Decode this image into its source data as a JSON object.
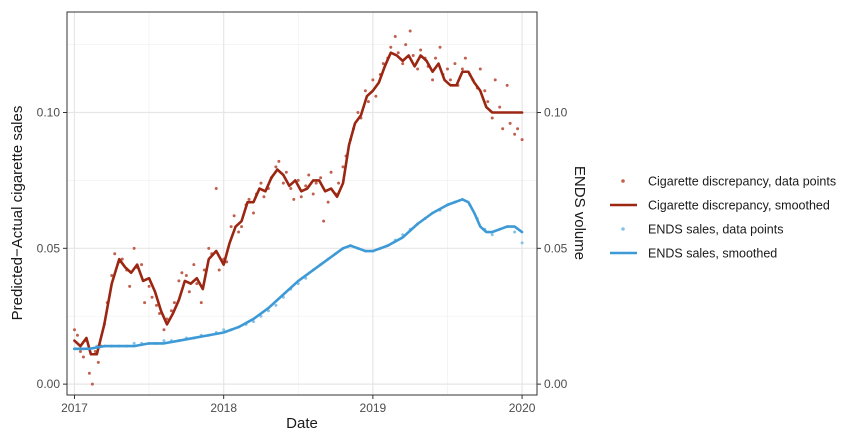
{
  "chart_data": {
    "type": "line",
    "xlabel": "Date",
    "ylabel_left": "Predicted−Actual cigarette sales",
    "ylabel_right": "ENDS volume",
    "x_ticks": [
      "2017",
      "2018",
      "2019",
      "2020"
    ],
    "xlim": [
      2016.95,
      2020.1
    ],
    "y_ticks_left": [
      "0.00",
      "0.05",
      "0.10"
    ],
    "y_ticks_right": [
      "0.00",
      "0.05",
      "0.10"
    ],
    "ylim": [
      -0.004,
      0.137
    ],
    "grid": true,
    "legend_position": "right",
    "colors": {
      "cigarette": "#9b2612",
      "cigarette_points": "#c0604e",
      "ends": "#3d9ad6",
      "ends_points": "#86c3e8"
    },
    "series": [
      {
        "name": "Cigarette discrepancy, smoothed",
        "kind": "line",
        "color": "#9b2612",
        "x": [
          2017.0,
          2017.04,
          2017.08,
          2017.11,
          2017.15,
          2017.2,
          2017.25,
          2017.3,
          2017.34,
          2017.38,
          2017.42,
          2017.46,
          2017.5,
          2017.54,
          2017.58,
          2017.62,
          2017.66,
          2017.7,
          2017.74,
          2017.78,
          2017.82,
          2017.86,
          2017.9,
          2017.95,
          2018.0,
          2018.04,
          2018.08,
          2018.12,
          2018.16,
          2018.2,
          2018.24,
          2018.28,
          2018.32,
          2018.36,
          2018.4,
          2018.44,
          2018.48,
          2018.52,
          2018.56,
          2018.6,
          2018.64,
          2018.68,
          2018.72,
          2018.76,
          2018.8,
          2018.84,
          2018.88,
          2018.92,
          2018.96,
          2019.0,
          2019.04,
          2019.08,
          2019.12,
          2019.16,
          2019.2,
          2019.24,
          2019.28,
          2019.32,
          2019.36,
          2019.4,
          2019.44,
          2019.48,
          2019.52,
          2019.56,
          2019.6,
          2019.64,
          2019.68,
          2019.72,
          2019.76,
          2019.8,
          2019.84,
          2019.88,
          2019.92,
          2019.96,
          2020.0
        ],
        "values": [
          0.016,
          0.014,
          0.017,
          0.011,
          0.011,
          0.022,
          0.037,
          0.046,
          0.043,
          0.041,
          0.044,
          0.038,
          0.039,
          0.034,
          0.027,
          0.022,
          0.026,
          0.031,
          0.038,
          0.037,
          0.039,
          0.035,
          0.046,
          0.049,
          0.044,
          0.052,
          0.058,
          0.06,
          0.067,
          0.067,
          0.072,
          0.071,
          0.076,
          0.079,
          0.077,
          0.073,
          0.075,
          0.071,
          0.072,
          0.075,
          0.075,
          0.071,
          0.072,
          0.069,
          0.074,
          0.088,
          0.096,
          0.099,
          0.106,
          0.108,
          0.111,
          0.117,
          0.122,
          0.121,
          0.119,
          0.121,
          0.117,
          0.121,
          0.119,
          0.115,
          0.118,
          0.112,
          0.11,
          0.11,
          0.115,
          0.115,
          0.111,
          0.108,
          0.102,
          0.1,
          0.1,
          0.1,
          0.1,
          0.1,
          0.1
        ]
      },
      {
        "name": "Cigarette discrepancy, data points",
        "kind": "points",
        "color": "#c0604e",
        "x": [
          2017.0,
          2017.02,
          2017.04,
          2017.06,
          2017.08,
          2017.1,
          2017.12,
          2017.14,
          2017.16,
          2017.18,
          2017.2,
          2017.22,
          2017.25,
          2017.27,
          2017.3,
          2017.32,
          2017.35,
          2017.37,
          2017.4,
          2017.42,
          2017.45,
          2017.47,
          2017.5,
          2017.52,
          2017.55,
          2017.57,
          2017.6,
          2017.62,
          2017.65,
          2017.67,
          2017.7,
          2017.72,
          2017.75,
          2017.77,
          2017.8,
          2017.82,
          2017.85,
          2017.87,
          2017.9,
          2017.92,
          2017.95,
          2017.97,
          2018.0,
          2018.02,
          2018.05,
          2018.07,
          2018.1,
          2018.12,
          2018.15,
          2018.17,
          2018.2,
          2018.22,
          2018.25,
          2018.27,
          2018.3,
          2018.32,
          2018.35,
          2018.37,
          2018.4,
          2018.42,
          2018.45,
          2018.47,
          2018.5,
          2018.52,
          2018.55,
          2018.57,
          2018.6,
          2018.62,
          2018.65,
          2018.67,
          2018.7,
          2018.72,
          2018.75,
          2018.77,
          2018.8,
          2018.82,
          2018.85,
          2018.87,
          2018.9,
          2018.92,
          2018.95,
          2018.97,
          2019.0,
          2019.02,
          2019.05,
          2019.07,
          2019.1,
          2019.12,
          2019.15,
          2019.17,
          2019.2,
          2019.22,
          2019.25,
          2019.27,
          2019.3,
          2019.32,
          2019.35,
          2019.37,
          2019.4,
          2019.42,
          2019.45,
          2019.47,
          2019.5,
          2019.52,
          2019.55,
          2019.57,
          2019.6,
          2019.62,
          2019.65,
          2019.67,
          2019.7,
          2019.72,
          2019.75,
          2019.77,
          2019.8,
          2019.82,
          2019.85,
          2019.87,
          2019.9,
          2019.92,
          2019.95,
          2019.97,
          2020.0
        ],
        "values": [
          0.02,
          0.018,
          0.012,
          0.01,
          0.016,
          0.004,
          0.0,
          0.012,
          0.008,
          0.014,
          0.022,
          0.03,
          0.04,
          0.048,
          0.045,
          0.046,
          0.042,
          0.036,
          0.05,
          0.043,
          0.044,
          0.03,
          0.036,
          0.032,
          0.029,
          0.026,
          0.02,
          0.024,
          0.027,
          0.03,
          0.038,
          0.041,
          0.04,
          0.034,
          0.044,
          0.037,
          0.03,
          0.042,
          0.05,
          0.048,
          0.072,
          0.042,
          0.046,
          0.045,
          0.058,
          0.062,
          0.056,
          0.058,
          0.066,
          0.068,
          0.063,
          0.07,
          0.074,
          0.069,
          0.072,
          0.076,
          0.08,
          0.082,
          0.074,
          0.078,
          0.072,
          0.068,
          0.075,
          0.069,
          0.073,
          0.077,
          0.07,
          0.074,
          0.076,
          0.06,
          0.067,
          0.078,
          0.07,
          0.074,
          0.08,
          0.084,
          0.09,
          0.094,
          0.1,
          0.098,
          0.108,
          0.104,
          0.112,
          0.106,
          0.114,
          0.118,
          0.12,
          0.124,
          0.128,
          0.122,
          0.118,
          0.125,
          0.13,
          0.121,
          0.116,
          0.123,
          0.12,
          0.117,
          0.112,
          0.12,
          0.124,
          0.114,
          0.116,
          0.112,
          0.118,
          0.11,
          0.116,
          0.12,
          0.114,
          0.112,
          0.109,
          0.116,
          0.108,
          0.104,
          0.098,
          0.112,
          0.102,
          0.094,
          0.11,
          0.096,
          0.092,
          0.094,
          0.09
        ]
      },
      {
        "name": "ENDS sales, smoothed",
        "kind": "line",
        "color": "#3d9ad6",
        "x": [
          2017.0,
          2017.1,
          2017.2,
          2017.3,
          2017.4,
          2017.5,
          2017.6,
          2017.7,
          2017.8,
          2017.9,
          2018.0,
          2018.1,
          2018.2,
          2018.3,
          2018.4,
          2018.5,
          2018.6,
          2018.7,
          2018.8,
          2018.85,
          2018.9,
          2018.95,
          2019.0,
          2019.1,
          2019.2,
          2019.3,
          2019.4,
          2019.5,
          2019.55,
          2019.6,
          2019.64,
          2019.68,
          2019.72,
          2019.76,
          2019.8,
          2019.85,
          2019.9,
          2019.95,
          2020.0
        ],
        "values": [
          0.013,
          0.013,
          0.014,
          0.014,
          0.014,
          0.015,
          0.015,
          0.016,
          0.017,
          0.018,
          0.019,
          0.021,
          0.024,
          0.028,
          0.033,
          0.038,
          0.042,
          0.046,
          0.05,
          0.051,
          0.05,
          0.049,
          0.049,
          0.051,
          0.054,
          0.059,
          0.063,
          0.066,
          0.067,
          0.068,
          0.067,
          0.063,
          0.058,
          0.056,
          0.056,
          0.057,
          0.058,
          0.058,
          0.056
        ]
      },
      {
        "name": "ENDS sales, data points",
        "kind": "points",
        "color": "#86c3e8",
        "x": [
          2017.0,
          2017.05,
          2017.1,
          2017.15,
          2017.2,
          2017.25,
          2017.3,
          2017.35,
          2017.4,
          2017.45,
          2017.5,
          2017.55,
          2017.6,
          2017.65,
          2017.7,
          2017.75,
          2017.8,
          2017.85,
          2017.9,
          2017.95,
          2018.0,
          2018.05,
          2018.1,
          2018.15,
          2018.2,
          2018.25,
          2018.3,
          2018.35,
          2018.4,
          2018.45,
          2018.5,
          2018.55,
          2018.6,
          2018.65,
          2018.7,
          2018.75,
          2018.8,
          2018.85,
          2018.9,
          2018.95,
          2019.0,
          2019.05,
          2019.1,
          2019.15,
          2019.2,
          2019.25,
          2019.3,
          2019.35,
          2019.4,
          2019.45,
          2019.5,
          2019.55,
          2019.6,
          2019.65,
          2019.7,
          2019.75,
          2019.8,
          2019.85,
          2019.9,
          2019.95,
          2020.0
        ],
        "values": [
          0.013,
          0.013,
          0.013,
          0.014,
          0.014,
          0.014,
          0.014,
          0.014,
          0.015,
          0.015,
          0.015,
          0.015,
          0.016,
          0.016,
          0.016,
          0.017,
          0.017,
          0.018,
          0.018,
          0.019,
          0.02,
          0.02,
          0.021,
          0.022,
          0.023,
          0.025,
          0.027,
          0.029,
          0.032,
          0.035,
          0.037,
          0.039,
          0.042,
          0.044,
          0.046,
          0.048,
          0.05,
          0.051,
          0.05,
          0.049,
          0.049,
          0.05,
          0.051,
          0.053,
          0.055,
          0.057,
          0.059,
          0.061,
          0.063,
          0.064,
          0.066,
          0.067,
          0.068,
          0.066,
          0.061,
          0.057,
          0.055,
          0.057,
          0.058,
          0.056,
          0.052
        ]
      }
    ],
    "legend": [
      {
        "label": "Cigarette discrepancy, data points",
        "kind": "point",
        "color": "#c0604e"
      },
      {
        "label": "Cigarette discrepancy, smoothed",
        "kind": "line",
        "color": "#9b2612"
      },
      {
        "label": "ENDS sales, data points",
        "kind": "point",
        "color": "#86c3e8"
      },
      {
        "label": "ENDS sales, smoothed",
        "kind": "line",
        "color": "#3d9ad6"
      }
    ]
  }
}
